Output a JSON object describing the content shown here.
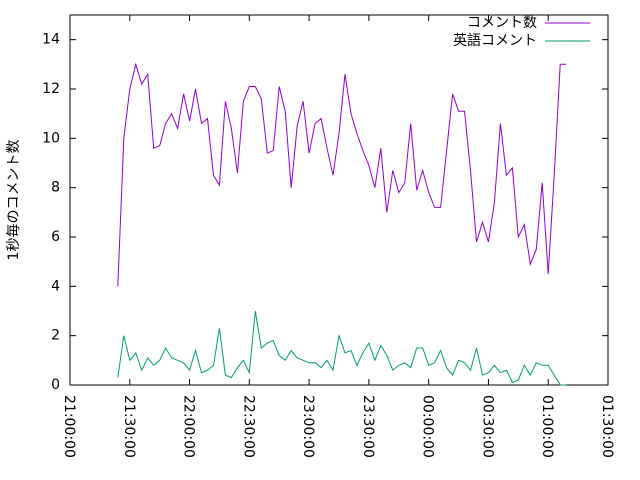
{
  "chart_data": {
    "type": "line",
    "y_label": "1秒毎のコメント数",
    "x": [
      "21:24:00",
      "21:27:00",
      "21:30:00",
      "21:33:00",
      "21:36:00",
      "21:39:00",
      "21:42:00",
      "21:45:00",
      "21:48:00",
      "21:51:00",
      "21:54:00",
      "21:57:00",
      "22:00:00",
      "22:03:00",
      "22:06:00",
      "22:09:00",
      "22:12:00",
      "22:15:00",
      "22:18:00",
      "22:21:00",
      "22:24:00",
      "22:27:00",
      "22:30:00",
      "22:33:00",
      "22:36:00",
      "22:39:00",
      "22:42:00",
      "22:45:00",
      "22:48:00",
      "22:51:00",
      "22:54:00",
      "22:57:00",
      "23:00:00",
      "23:03:00",
      "23:06:00",
      "23:09:00",
      "23:12:00",
      "23:15:00",
      "23:18:00",
      "23:21:00",
      "23:24:00",
      "23:27:00",
      "23:30:00",
      "23:33:00",
      "23:36:00",
      "23:39:00",
      "23:42:00",
      "23:45:00",
      "23:48:00",
      "23:51:00",
      "23:54:00",
      "23:57:00",
      "00:00:00",
      "00:03:00",
      "00:06:00",
      "00:09:00",
      "00:12:00",
      "00:15:00",
      "00:18:00",
      "00:21:00",
      "00:24:00",
      "00:27:00",
      "00:30:00",
      "00:33:00",
      "00:36:00",
      "00:39:00",
      "00:42:00",
      "00:45:00",
      "00:48:00",
      "00:51:00",
      "00:54:00",
      "00:57:00",
      "01:00:00",
      "01:03:00",
      "01:06:00",
      "01:09:00"
    ],
    "series": [
      {
        "name": "コメント数",
        "color": "#9400d3",
        "values": [
          4,
          10,
          12,
          13,
          12.2,
          12.6,
          9.6,
          9.7,
          10.6,
          11,
          10.4,
          11.8,
          10.7,
          12,
          10.6,
          10.8,
          8.5,
          8.1,
          11.5,
          10.4,
          8.6,
          11.5,
          12.1,
          12.1,
          11.6,
          9.4,
          9.5,
          12.1,
          11.1,
          8.0,
          10.5,
          11.5,
          9.4,
          10.6,
          10.8,
          9.6,
          8.5,
          10.2,
          12.6,
          11,
          10.2,
          9.5,
          8.9,
          8.0,
          9.6,
          7.0,
          8.7,
          7.8,
          8.2,
          10.6,
          7.9,
          8.7,
          7.8,
          7.2,
          7.2,
          9.5,
          11.8,
          11.1,
          11.1,
          8.7,
          5.8,
          6.6,
          5.8,
          7.4,
          10.6,
          8.5,
          8.8,
          6.0,
          6.5,
          4.9,
          5.5,
          8.2,
          4.5,
          8.5,
          13.0,
          13.0
        ]
      },
      {
        "name": "英語コメント",
        "color": "#009e73",
        "values": [
          0.3,
          2.0,
          1.0,
          1.3,
          0.6,
          1.1,
          0.8,
          1.0,
          1.5,
          1.1,
          1.0,
          0.9,
          0.6,
          1.4,
          0.5,
          0.6,
          0.8,
          2.3,
          0.4,
          0.3,
          0.7,
          1.0,
          0.5,
          3.0,
          1.5,
          1.7,
          1.8,
          1.2,
          1.0,
          1.4,
          1.1,
          1.0,
          0.9,
          0.9,
          0.7,
          1.0,
          0.6,
          2.0,
          1.3,
          1.4,
          0.8,
          1.3,
          1.7,
          1.0,
          1.6,
          1.2,
          0.6,
          0.8,
          0.9,
          0.7,
          1.5,
          1.5,
          0.8,
          0.9,
          1.4,
          0.7,
          0.4,
          1.0,
          0.9,
          0.6,
          1.5,
          0.4,
          0.5,
          0.8,
          0.5,
          0.6,
          0.1,
          0.2,
          0.8,
          0.4,
          0.9,
          0.8,
          0.8,
          0.4,
          0.0,
          0.0
        ]
      }
    ],
    "xlim": [
      "21:00:00",
      "01:30:00"
    ],
    "xticks": [
      "21:00:00",
      "21:30:00",
      "22:00:00",
      "22:30:00",
      "23:00:00",
      "23:30:00",
      "00:00:00",
      "00:30:00",
      "01:00:00",
      "01:30:00"
    ],
    "ylim": [
      0,
      15
    ],
    "yticks": [
      0,
      2,
      4,
      6,
      8,
      10,
      12,
      14
    ],
    "legend": "top-right"
  }
}
